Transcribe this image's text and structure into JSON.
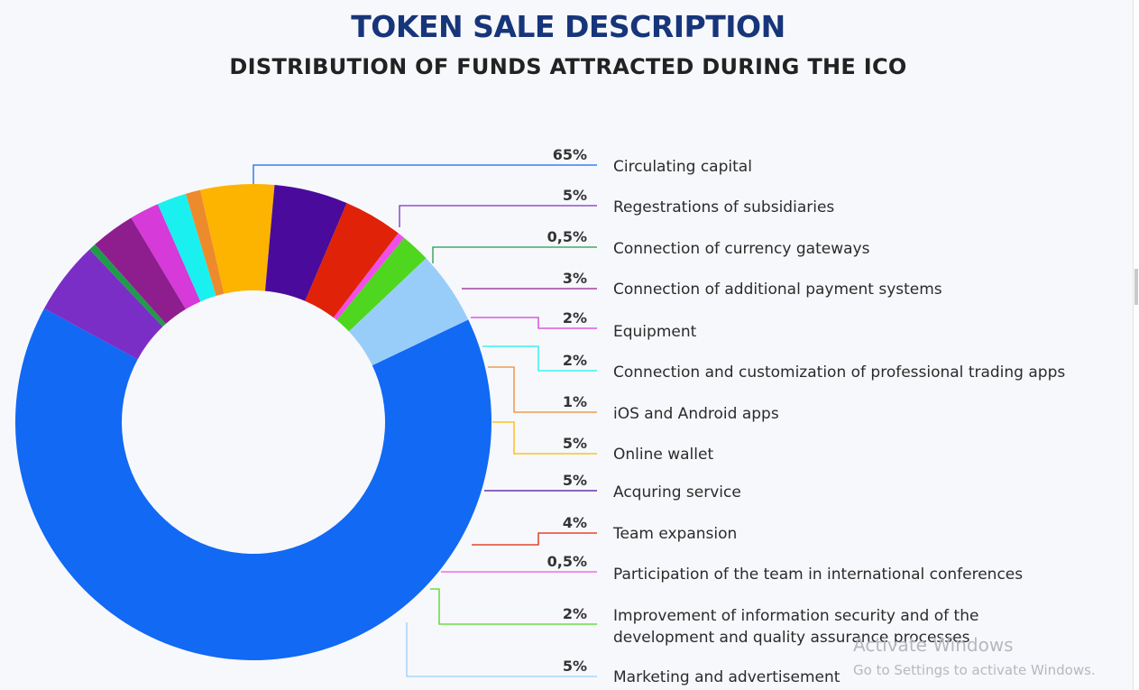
{
  "title": "TOKEN SALE DESCRIPTION",
  "subtitle": "DISTRIBUTION OF FUNDS ATTRACTED DURING THE ICO",
  "watermark": {
    "line1": "Activate Windows",
    "line2": "Go to Settings to activate Windows."
  },
  "chart_data": {
    "type": "pie",
    "style": "donut",
    "title": "DISTRIBUTION OF FUNDS ATTRACTED DURING THE ICO",
    "legend_placement": "right",
    "slices": [
      {
        "label": "Circulating capital",
        "value": 65,
        "display": "65%",
        "color": "#1169f4"
      },
      {
        "label": "Regestrations of subsidiaries",
        "value": 5,
        "display": "5%",
        "color": "#7b2ec6"
      },
      {
        "label": "Connection of currency gateways",
        "value": 0.5,
        "display": "0,5%",
        "color": "#1f9c4a"
      },
      {
        "label": "Connection of additional payment systems",
        "value": 3,
        "display": "3%",
        "color": "#8e1e8e"
      },
      {
        "label": "Equipment",
        "value": 2,
        "display": "2%",
        "color": "#d63ad9"
      },
      {
        "label": "Connection and customization of professional trading apps",
        "value": 2,
        "display": "2%",
        "color": "#1af0f0"
      },
      {
        "label": "iOS and Android apps",
        "value": 1,
        "display": "1%",
        "color": "#ec8a2c"
      },
      {
        "label": "Online wallet",
        "value": 5,
        "display": "5%",
        "color": "#fdb400"
      },
      {
        "label": "Acquring service",
        "value": 5,
        "display": "5%",
        "color": "#4a0b9c"
      },
      {
        "label": "Team expansion",
        "value": 4,
        "display": "4%",
        "color": "#e02208"
      },
      {
        "label": "Participation of the team in international conferences",
        "value": 0.5,
        "display": "0,5%",
        "color": "#ef4fe8"
      },
      {
        "label": "Improvement of information security and of the\ndevelopment and quality assurance processes",
        "value": 2,
        "display": "2%",
        "color": "#4fd61e"
      },
      {
        "label": "Marketing and advertisement",
        "value": 5,
        "display": "5%",
        "color": "#99cdf9"
      }
    ]
  }
}
